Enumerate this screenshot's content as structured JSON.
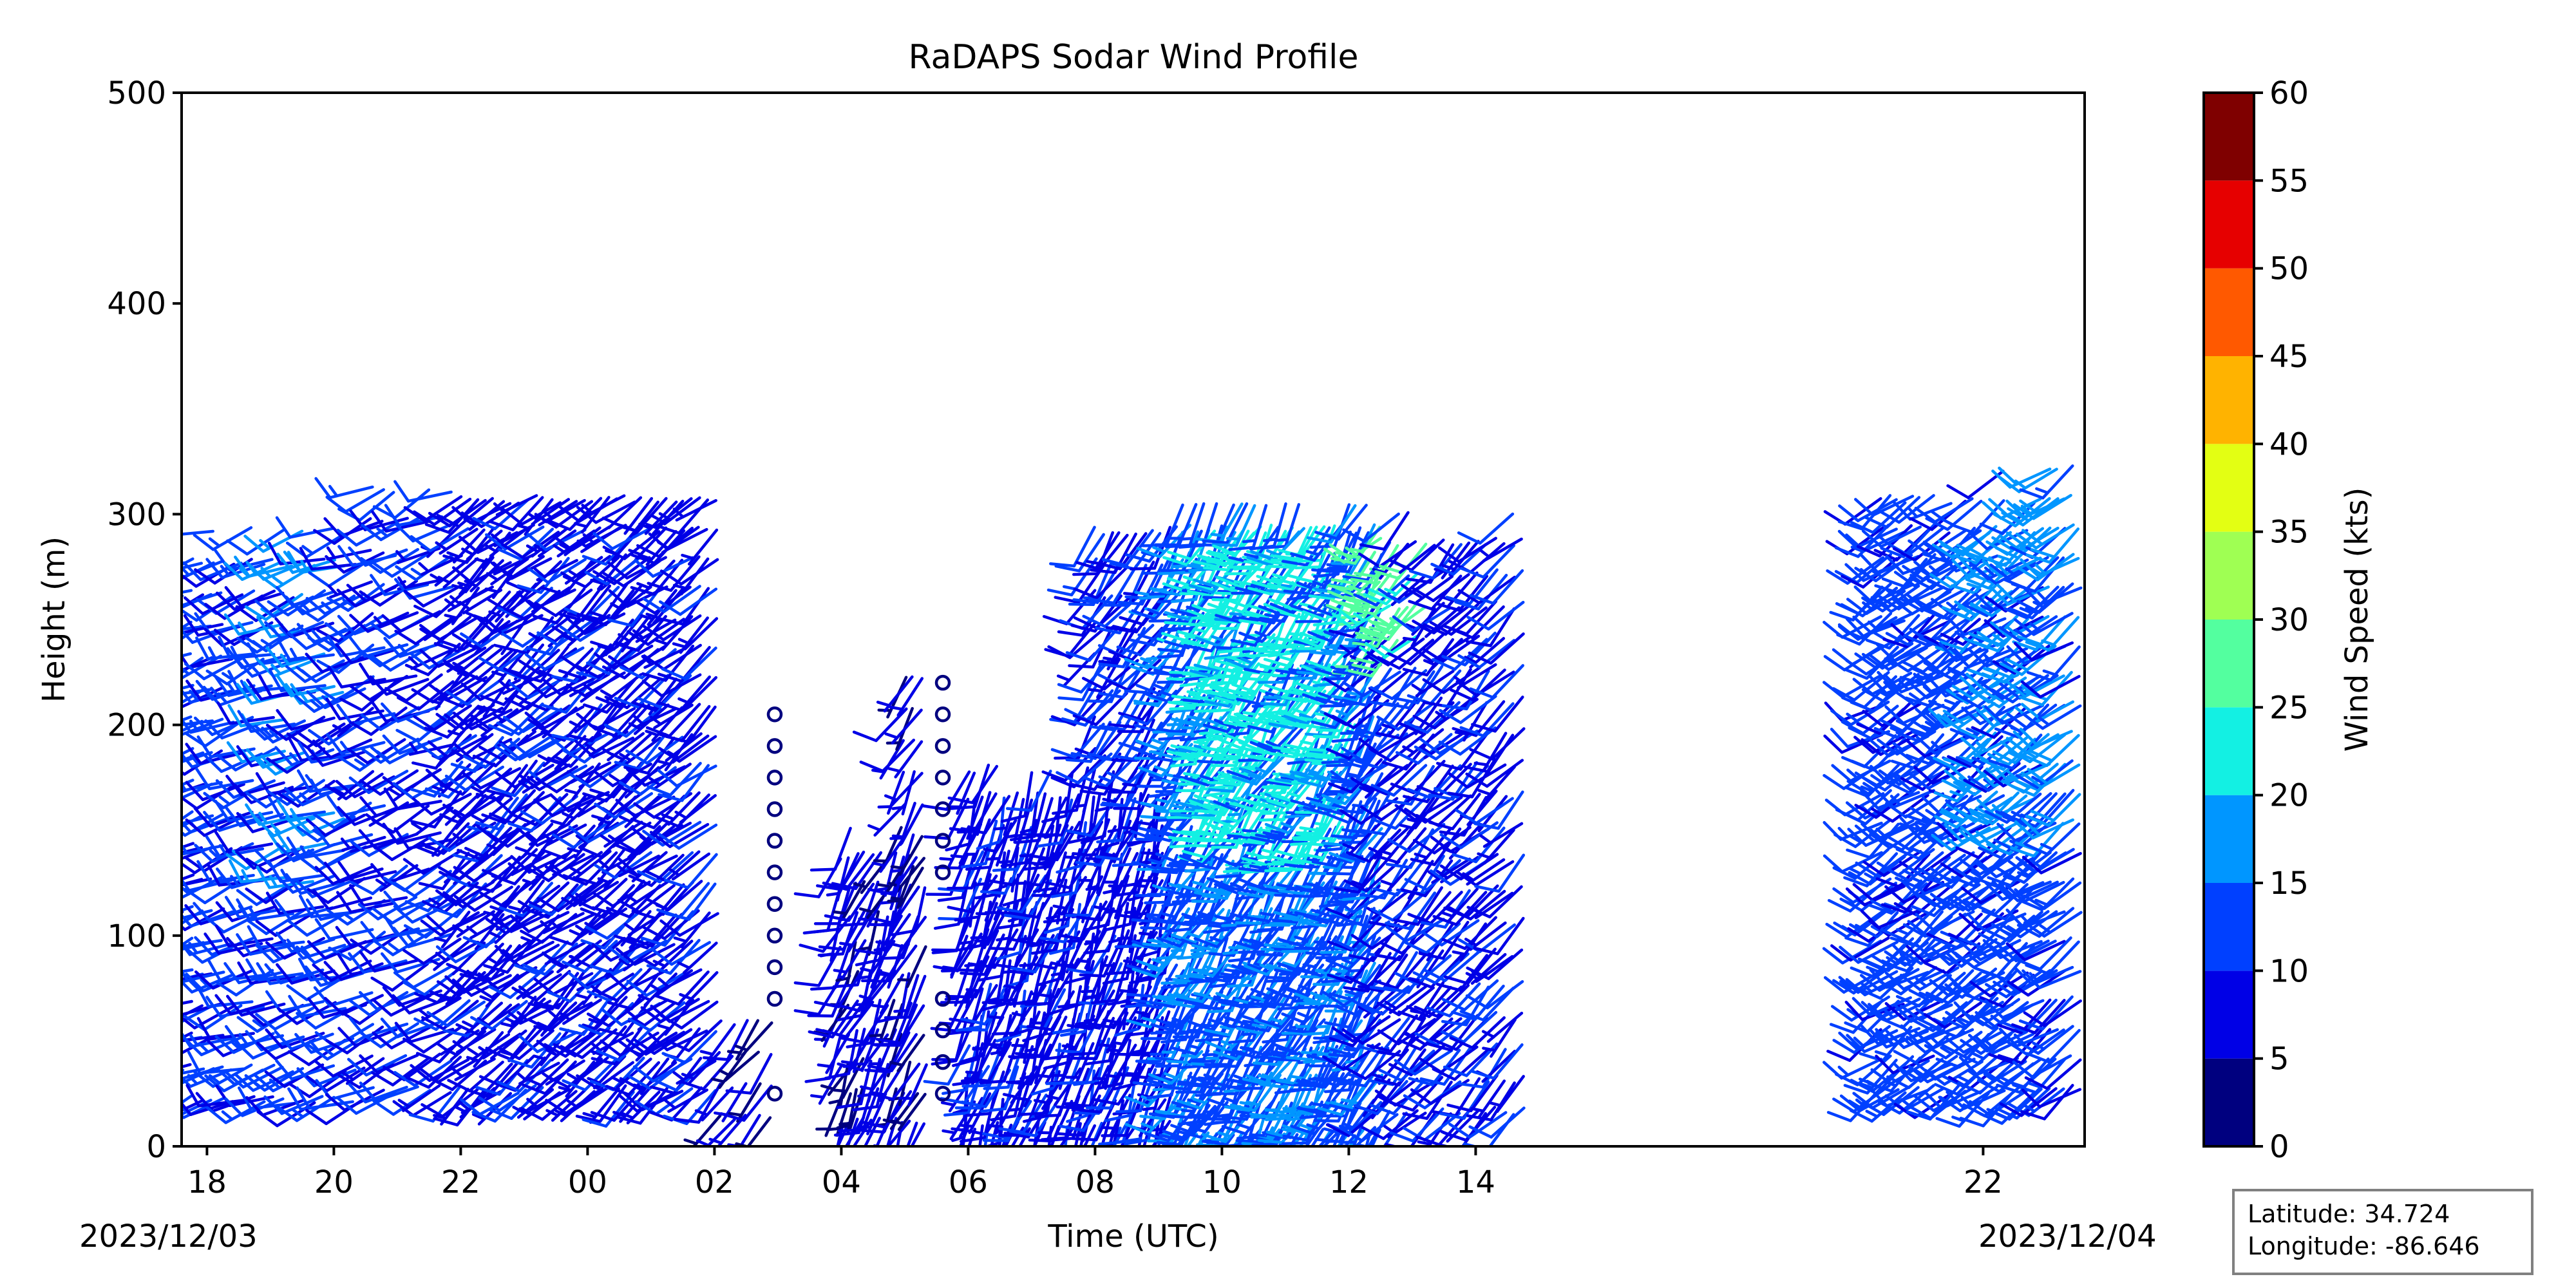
{
  "chart_data": {
    "type": "wind_barbs",
    "title": "RaDAPS Sodar Wind Profile",
    "xlabel": "Time (UTC)",
    "ylabel": "Height (m)",
    "ylim": [
      0,
      500
    ],
    "yticks": [
      0,
      100,
      200,
      300,
      400,
      500
    ],
    "xlim_hours": [
      17.6,
      47.6
    ],
    "xtick_labels": [
      "18",
      "20",
      "22",
      "00",
      "02",
      "04",
      "06",
      "08",
      "10",
      "12",
      "14",
      "22"
    ],
    "xtick_hours": [
      18,
      20,
      22,
      24,
      26,
      28,
      30,
      32,
      34,
      36,
      38,
      46
    ],
    "start_date_label": "2023/12/03",
    "end_date_label": "2023/12/04",
    "colorbar": {
      "label": "Wind Speed (kts)",
      "ticks": [
        0,
        5,
        10,
        15,
        20,
        25,
        30,
        35,
        40,
        45,
        50,
        55,
        60
      ],
      "colors": [
        "#00007f",
        "#0000e6",
        "#0040ff",
        "#0096ff",
        "#13f0e3",
        "#53ff9f",
        "#9fff53",
        "#e3ff13",
        "#ffb300",
        "#ff5900",
        "#e60000",
        "#7f0000"
      ]
    },
    "profile_groups": [
      {
        "start": 17.6,
        "end": 20.6,
        "step": 0.16,
        "hmin": 20,
        "hmax": 300,
        "hstep": 15,
        "speed": 11,
        "dir": 250,
        "top_jitter": 25
      },
      {
        "start": 20.6,
        "end": 22.0,
        "step": 0.18,
        "hmin": 25,
        "hmax": 320,
        "hstep": 15,
        "speed": 10,
        "dir": 245,
        "top_jitter": 10
      },
      {
        "start": 22.0,
        "end": 26.1,
        "step": 0.13,
        "hmin": 25,
        "hmax": 320,
        "hstep": 14,
        "speed": 8,
        "dir": 230,
        "top_jitter": 10
      },
      {
        "start": 26.1,
        "end": 26.9,
        "step": 0.2,
        "hmin": 12,
        "hmax": 70,
        "hstep": 15,
        "speed": 6,
        "dir": 220,
        "top_jitter": 0
      },
      {
        "start": 28.0,
        "end": 29.4,
        "step": 0.12,
        "hmin": 10,
        "hmax": 155,
        "hstep": 14,
        "speed": 7,
        "dir": 205,
        "top_jitter": 20
      },
      {
        "start": 29.0,
        "end": 29.4,
        "step": 0.14,
        "hmin": 130,
        "hmax": 230,
        "hstep": 15,
        "speed": 6,
        "dir": 210,
        "top_jitter": 0
      },
      {
        "start": 30.0,
        "end": 33.2,
        "step": 0.11,
        "hmin": 8,
        "hmax": 185,
        "hstep": 13,
        "speed": 8,
        "dir": 200,
        "top_jitter": 15
      },
      {
        "start": 32.0,
        "end": 33.2,
        "step": 0.13,
        "hmin": 185,
        "hmax": 305,
        "hstep": 15,
        "speed": 10,
        "dir": 215,
        "top_jitter": 10
      },
      {
        "start": 33.3,
        "end": 36.5,
        "step": 0.1,
        "hmin": 5,
        "hmax": 305,
        "hstep": 13,
        "speed": 14,
        "dir": 210,
        "top_jitter": 0
      },
      {
        "start": 36.5,
        "end": 38.8,
        "step": 0.14,
        "hmin": 15,
        "hmax": 305,
        "hstep": 15,
        "speed": 9,
        "dir": 225,
        "top_jitter": 15
      },
      {
        "start": 44.4,
        "end": 47.6,
        "step": 0.12,
        "hmin": 25,
        "hmax": 330,
        "hstep": 14,
        "speed": 12,
        "dir": 235,
        "top_jitter": 40
      }
    ],
    "bright_clusters": [
      {
        "start": 33.8,
        "end": 36.2,
        "hmin": 150,
        "hmax": 300,
        "speed": 22
      },
      {
        "start": 36.4,
        "end": 37.2,
        "hmin": 240,
        "hmax": 300,
        "speed": 27
      },
      {
        "start": 19.2,
        "end": 20.3,
        "hmin": 120,
        "hmax": 320,
        "speed": 16
      },
      {
        "start": 46.0,
        "end": 47.6,
        "hmin": 150,
        "hmax": 330,
        "speed": 17
      }
    ],
    "calm_columns": [
      {
        "hour": 26.95,
        "heights": [
          25,
          70,
          85,
          100,
          115,
          130,
          145,
          160,
          175,
          190,
          205
        ]
      },
      {
        "hour": 29.6,
        "heights": [
          25,
          40,
          55,
          70,
          130,
          145,
          160,
          175,
          190,
          205,
          220
        ]
      }
    ]
  },
  "info_box": {
    "latitude_label": "Latitude: 34.724",
    "longitude_label": "Longitude: -86.646"
  }
}
